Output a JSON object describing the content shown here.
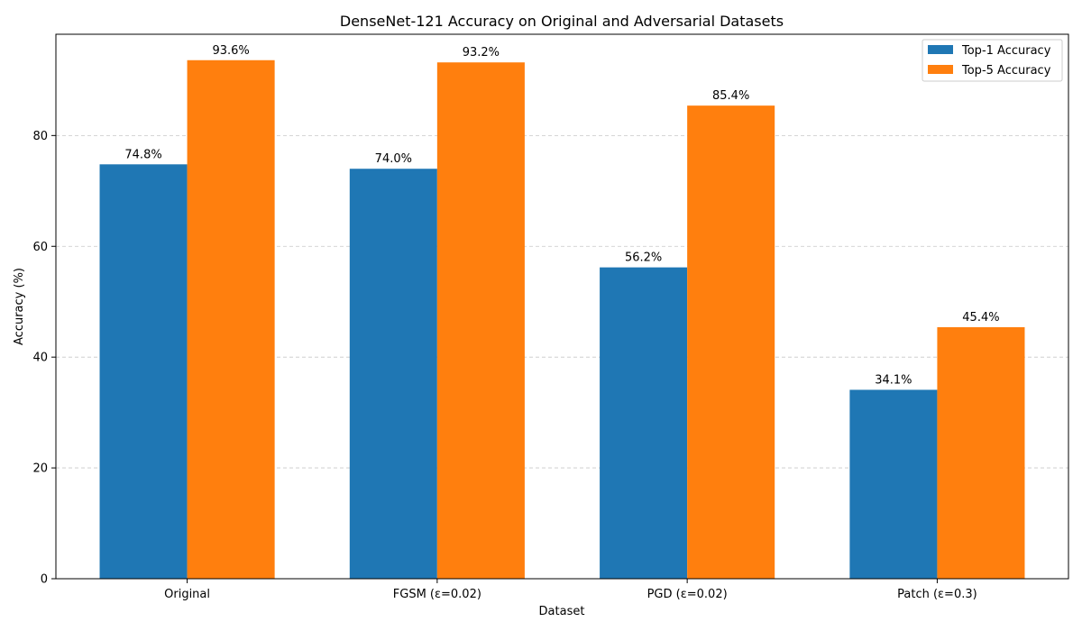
{
  "chart_data": {
    "type": "bar",
    "title": "DenseNet-121 Accuracy on Original and Adversarial Datasets",
    "xlabel": "Dataset",
    "ylabel": "Accuracy (%)",
    "categories": [
      "Original",
      "FGSM (ε=0.02)",
      "PGD (ε=0.02)",
      "Patch (ε=0.3)"
    ],
    "series": [
      {
        "name": "Top-1 Accuracy",
        "values": [
          74.8,
          74.0,
          56.2,
          34.1
        ],
        "labels": [
          "74.8%",
          "74.0%",
          "56.2%",
          "34.1%"
        ],
        "color": "#1f77b4"
      },
      {
        "name": "Top-5 Accuracy",
        "values": [
          93.6,
          93.2,
          85.4,
          45.4
        ],
        "labels": [
          "93.6%",
          "93.2%",
          "85.4%",
          "45.4%"
        ],
        "color": "#ff7f0e"
      }
    ],
    "yticks": [
      0,
      20,
      40,
      60,
      80
    ],
    "ytick_labels": [
      "0",
      "20",
      "40",
      "60",
      "80"
    ],
    "ylim": [
      0,
      98.28
    ],
    "grid": "y-dashed",
    "legend_position": "top-right"
  }
}
